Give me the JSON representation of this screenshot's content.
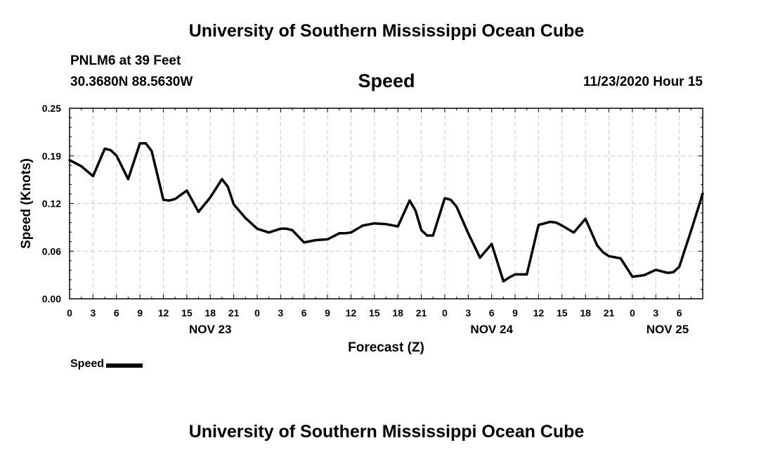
{
  "page": {
    "title_top": "University of Southern Mississippi Ocean Cube",
    "title_bottom": "University of Southern Mississippi Ocean Cube",
    "station": "PNLM6 at 39 Feet",
    "coords": "30.3680N 88.5630W",
    "variable": "Speed",
    "datetime": "11/23/2020 Hour 15"
  },
  "chart_data": {
    "type": "line",
    "title": "Speed",
    "xlabel": "Forecast (Z)",
    "ylabel": "Speed (Knots)",
    "ylim": [
      0,
      0.25
    ],
    "xlim": [
      0,
      54
    ],
    "grid": true,
    "y_ticks": [
      "0.00",
      "0.06",
      "0.12",
      "0.19",
      "0.25"
    ],
    "y_tick_values": [
      0,
      0.0625,
      0.125,
      0.1875,
      0.25
    ],
    "x_tick_labels": [
      "0",
      "3",
      "6",
      "9",
      "12",
      "15",
      "18",
      "21",
      "0",
      "3",
      "6",
      "9",
      "12",
      "15",
      "18",
      "21",
      "0",
      "3",
      "6",
      "9",
      "12",
      "15",
      "18",
      "21",
      "0",
      "3",
      "6"
    ],
    "day_labels": [
      {
        "label": "NOV 23",
        "hour": 12
      },
      {
        "label": "NOV 24",
        "hour": 36
      },
      {
        "label": "NOV 25",
        "hour": 51
      }
    ],
    "series": [
      {
        "name": "Speed",
        "color": "#000000",
        "x": [
          0,
          1,
          2,
          3,
          3.5,
          4,
          5,
          6,
          6.5,
          7,
          8,
          8.5,
          9,
          10,
          11,
          12,
          13,
          13.5,
          14,
          15,
          16,
          17,
          18,
          18.5,
          19,
          20,
          21,
          22,
          23,
          23.5,
          24,
          25,
          26,
          27,
          28,
          29,
          29.5,
          30,
          30.5,
          31,
          32,
          32.5,
          33,
          34,
          35,
          36,
          37,
          37.5,
          38,
          39,
          40,
          41,
          41.5,
          42,
          43,
          44,
          45,
          45.5,
          46,
          47,
          48,
          49,
          50,
          51,
          51.5,
          52,
          53,
          54
        ],
        "values": [
          0.182,
          0.174,
          0.161,
          0.197,
          0.195,
          0.188,
          0.157,
          0.204,
          0.204,
          0.194,
          0.13,
          0.129,
          0.131,
          0.142,
          0.114,
          0.133,
          0.157,
          0.147,
          0.124,
          0.106,
          0.092,
          0.087,
          0.092,
          0.092,
          0.09,
          0.074,
          0.077,
          0.078,
          0.086,
          0.086,
          0.087,
          0.096,
          0.099,
          0.098,
          0.095,
          0.129,
          0.116,
          0.09,
          0.083,
          0.083,
          0.132,
          0.13,
          0.121,
          0.086,
          0.054,
          0.072,
          0.023,
          0.028,
          0.032,
          0.032,
          0.097,
          0.101,
          0.1,
          0.096,
          0.087,
          0.105,
          0.07,
          0.061,
          0.056,
          0.053,
          0.029,
          0.031,
          0.038,
          0.034,
          0.035,
          0.042,
          0.089,
          0.138
        ]
      }
    ],
    "legend": [
      {
        "label": "Speed"
      }
    ]
  }
}
